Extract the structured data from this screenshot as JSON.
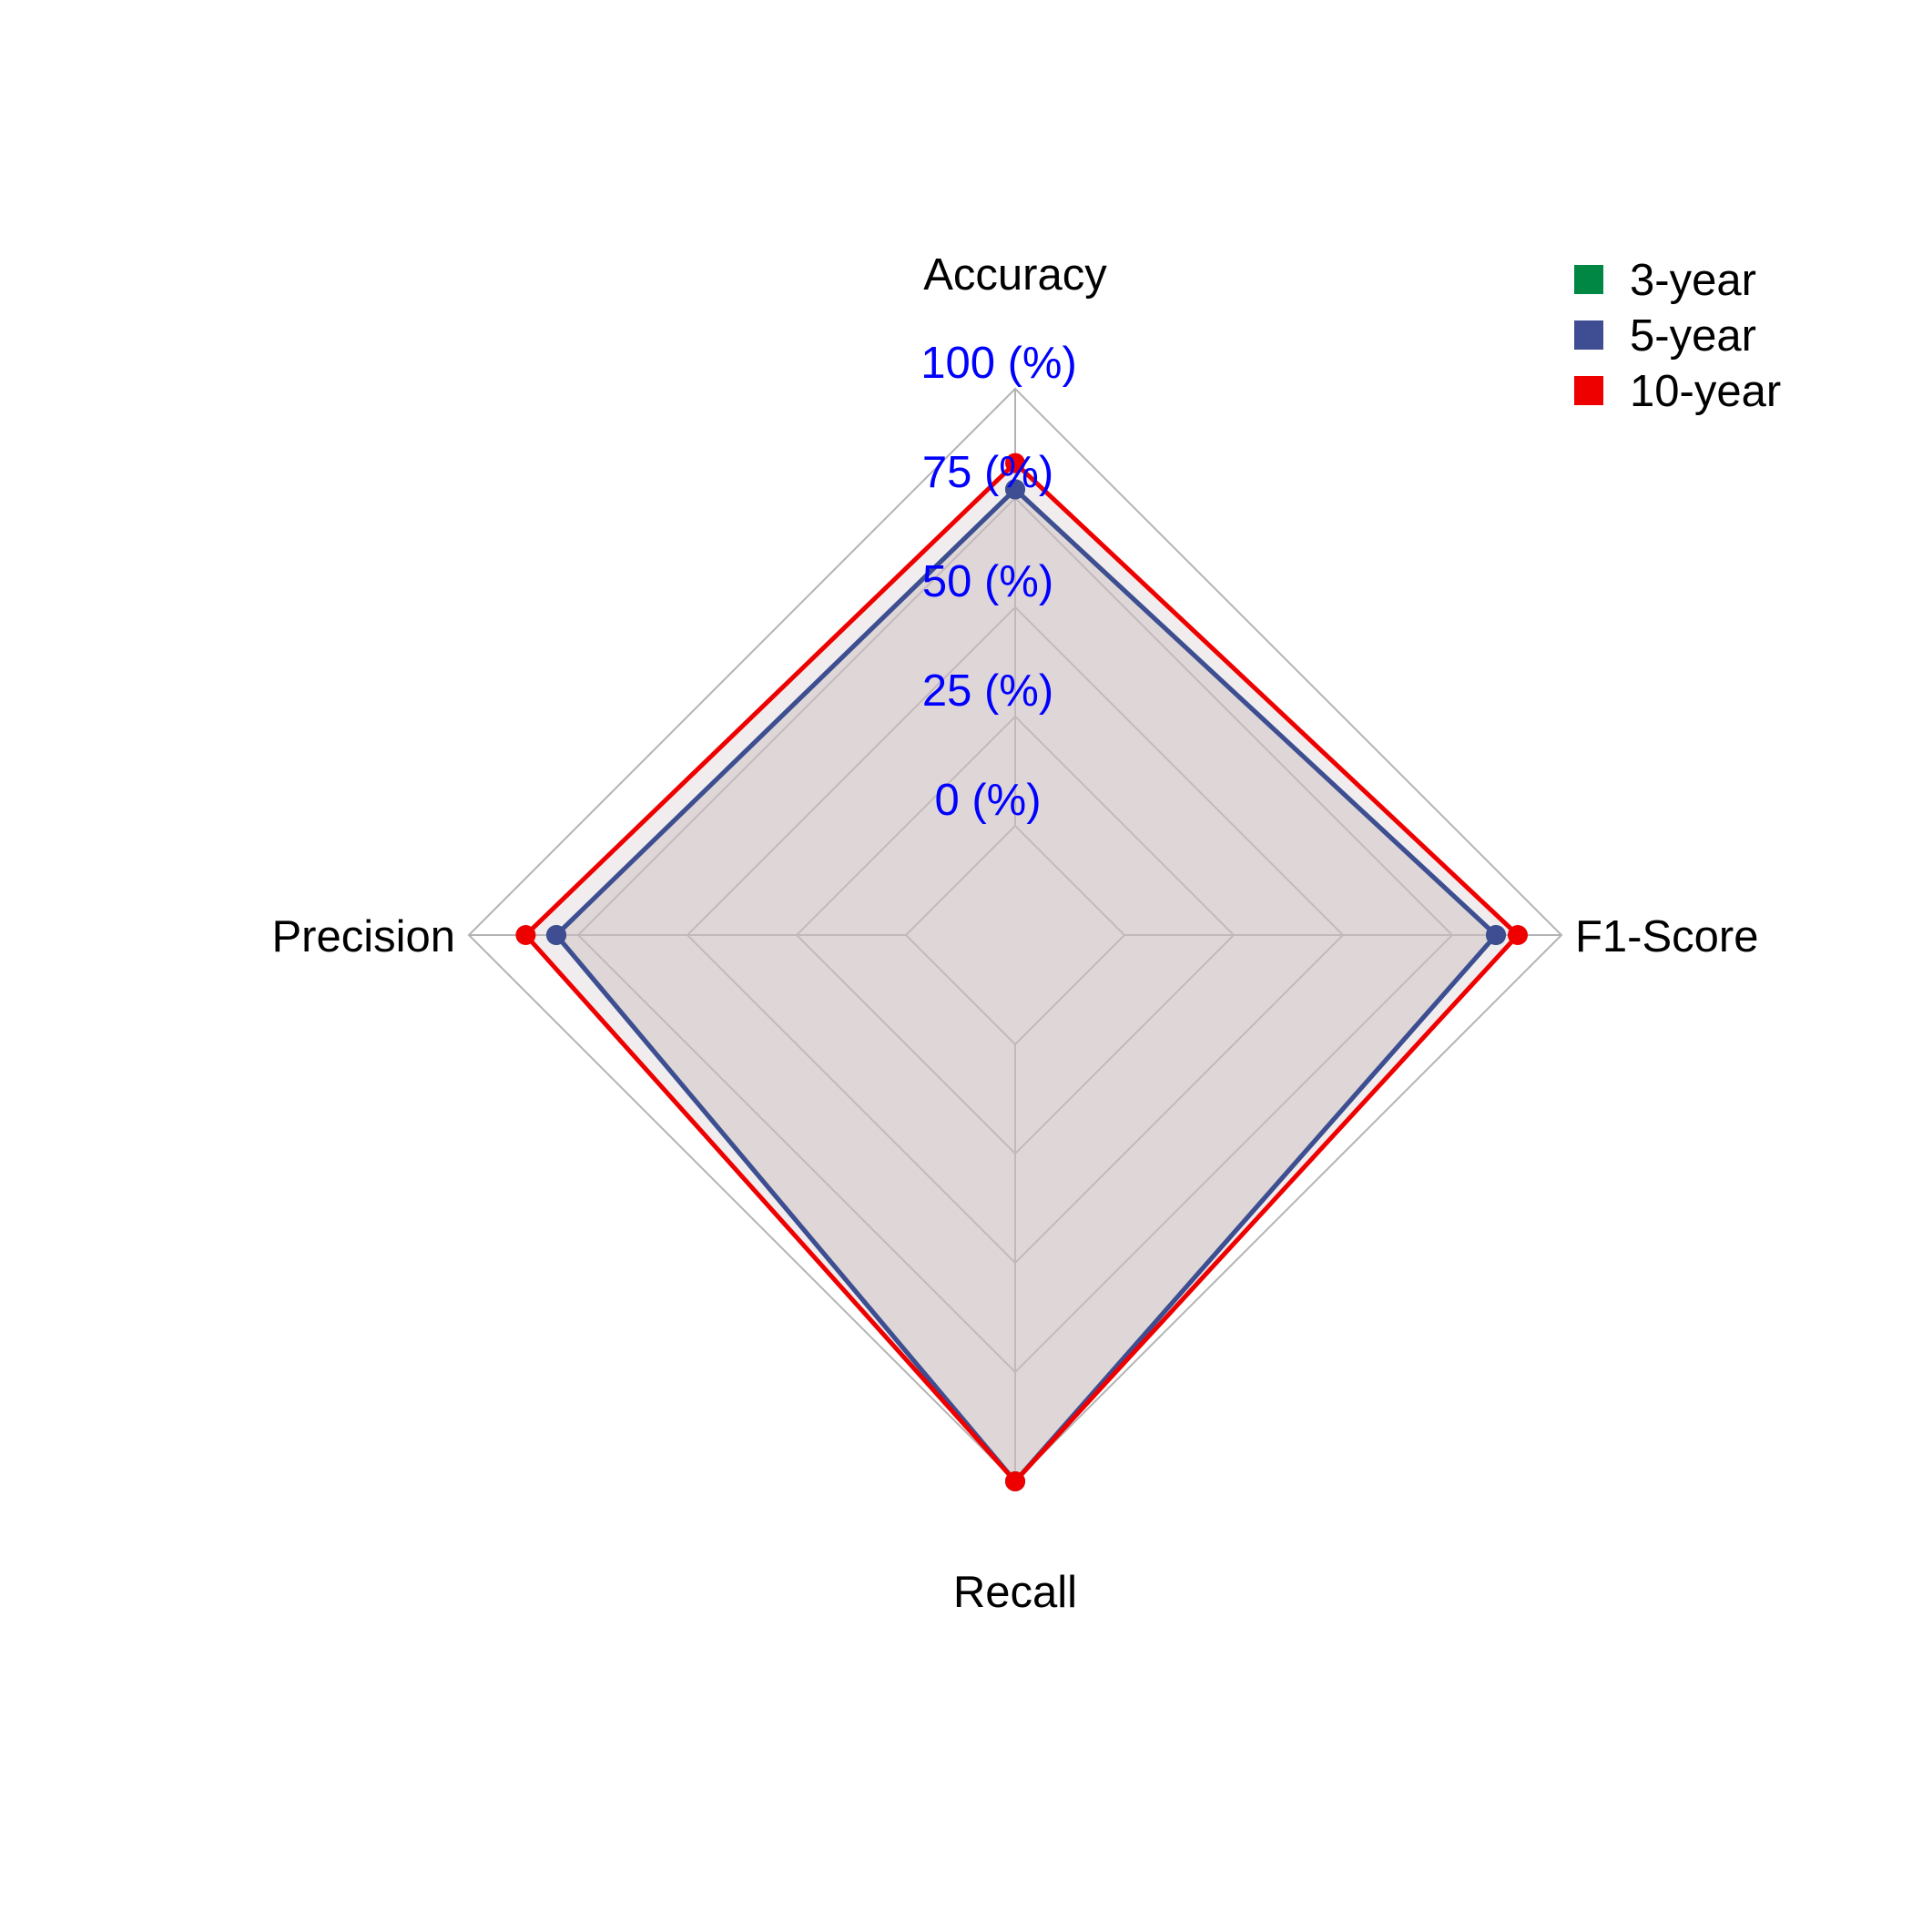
{
  "chart_data": {
    "type": "radar",
    "title": "",
    "axes": [
      "Accuracy",
      "F1-Score",
      "Recall",
      "Precision"
    ],
    "tick_labels": [
      "0 (%)",
      "25 (%)",
      "50 (%)",
      "75 (%)",
      "100 (%)"
    ],
    "tick_color": "#0000ff",
    "range": [
      0,
      100
    ],
    "grid": true,
    "legend_position": "top-right",
    "fill_color": "#cbbec3",
    "grid_color": "#b3b3b3",
    "series": [
      {
        "name": "3-year",
        "color": "#008744",
        "values": [
          77,
          85,
          100,
          80
        ]
      },
      {
        "name": "5-year",
        "color": "#3f4d93",
        "values": [
          77,
          85,
          100,
          80
        ]
      },
      {
        "name": "10-year",
        "color": "#ee0000",
        "values": [
          83,
          90,
          100,
          87
        ]
      }
    ]
  }
}
